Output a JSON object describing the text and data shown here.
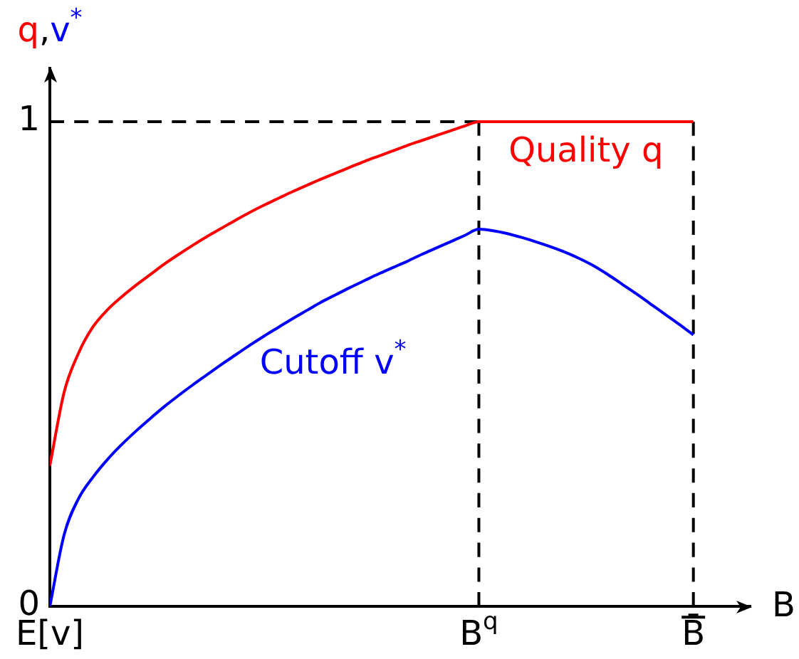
{
  "chart_data": {
    "type": "line",
    "xlabel": "B",
    "ylabel": "q,v$^{*}$",
    "categories": [
      "E[v]",
      null,
      null,
      null,
      null,
      null,
      null,
      null,
      null,
      null,
      null,
      null,
      null,
      null,
      null,
      null,
      null,
      null,
      null,
      null,
      null,
      null,
      null,
      null,
      null,
      null,
      null,
      null,
      null,
      null,
      "B$^{q}$",
      null,
      null,
      null,
      null,
      null,
      null,
      null,
      null,
      null,
      null,
      null,
      null,
      null,
      null,
      "B̄",
      null,
      null,
      null,
      null
    ],
    "ylim": [
      0,
      1.11
    ],
    "yticks": [
      0,
      1
    ],
    "marker": "none",
    "line_style": "solid",
    "series": [
      {
        "name": "Quality q",
        "color": "#ff0000",
        "values": [
          0.29,
          0.442,
          0.522,
          0.576,
          0.611,
          0.638,
          0.662,
          0.684,
          0.706,
          0.726,
          0.745,
          0.763,
          0.78,
          0.797,
          0.813,
          0.828,
          0.842,
          0.856,
          0.869,
          0.882,
          0.894,
          0.906,
          0.918,
          0.929,
          0.94,
          0.951,
          0.961,
          0.971,
          0.981,
          0.991,
          1,
          1,
          1,
          1,
          1,
          1,
          1,
          1,
          1,
          1,
          1,
          1,
          1,
          1,
          1,
          1,
          null,
          null,
          null,
          null
        ]
      },
      {
        "name": "Cutoff v$^{*}$",
        "color": "#0000ff",
        "values": [
          0,
          0.148,
          0.222,
          0.266,
          0.302,
          0.333,
          0.361,
          0.387,
          0.412,
          0.435,
          0.457,
          0.478,
          0.499,
          0.519,
          0.539,
          0.558,
          0.576,
          0.594,
          0.611,
          0.628,
          0.643,
          0.658,
          0.672,
          0.686,
          0.699,
          0.712,
          0.726,
          0.739,
          0.752,
          0.765,
          0.778,
          0.775,
          0.769,
          0.761,
          0.752,
          0.742,
          0.731,
          0.718,
          0.703,
          0.685,
          0.665,
          0.645,
          0.624,
          0.603,
          0.582,
          0.56,
          null,
          null,
          null,
          null
        ]
      },
      {
        "color": "#000000",
        "line_style": "dashed",
        "x": [
          "E[v]",
          "B$^{q}$"
        ],
        "values": [
          1,
          1
        ]
      },
      {
        "color": "#000000",
        "line_style": "dashed",
        "x": [
          "B$^{q}$",
          "B$^{q}$"
        ],
        "values": [
          0,
          1
        ]
      },
      {
        "color": "#000000",
        "line_style": "dashed",
        "x": [
          "B̄",
          "B̄"
        ],
        "values": [
          0,
          1
        ]
      }
    ]
  }
}
